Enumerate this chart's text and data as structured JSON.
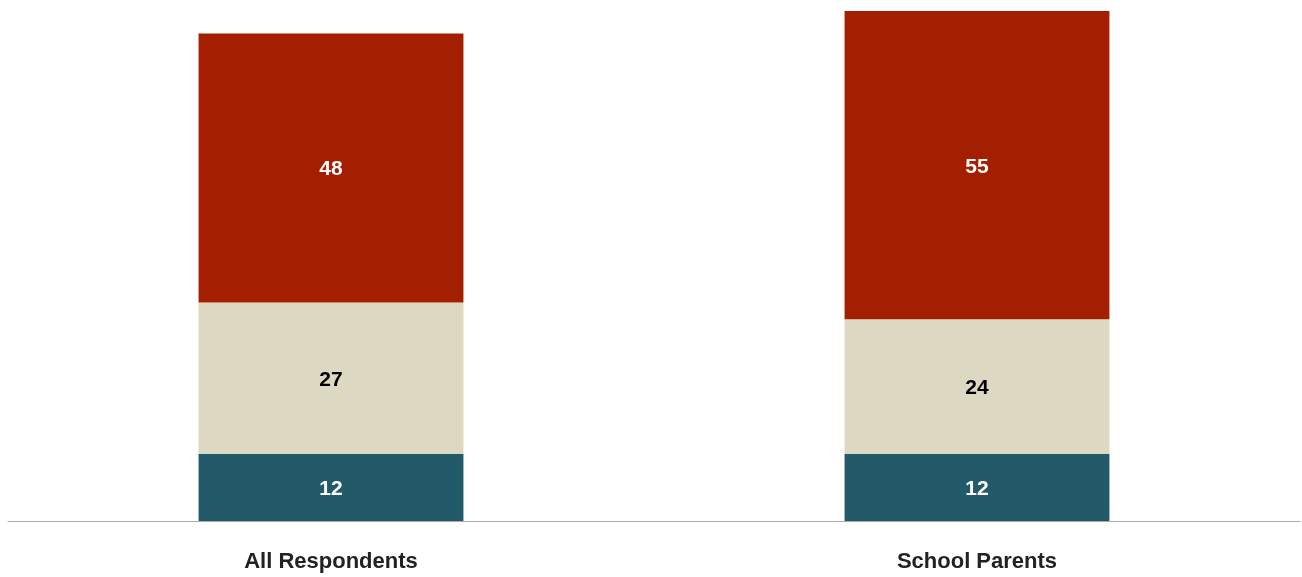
{
  "chart_data": {
    "type": "bar",
    "stacked": true,
    "categories": [
      "All Respondents",
      "School Parents"
    ],
    "series": [
      {
        "color": "#225a69",
        "values": [
          12,
          12
        ]
      },
      {
        "color": "#ddd8c2",
        "values": [
          27,
          24
        ]
      },
      {
        "color": "#a31f00",
        "values": [
          48,
          55
        ]
      }
    ],
    "data_labels": true
  }
}
